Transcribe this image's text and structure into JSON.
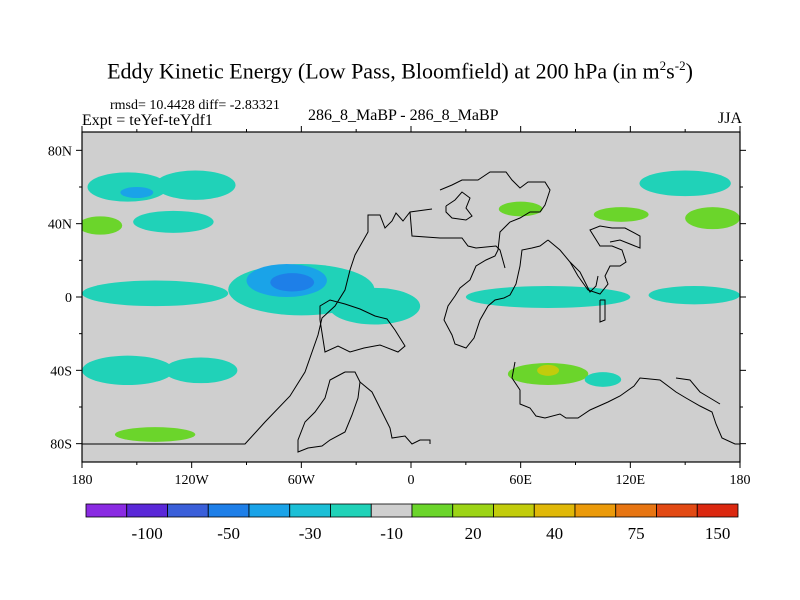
{
  "title": {
    "main": "Eddy Kinetic Energy (Low Pass, Bloomfield) at 200 hPa (in m",
    "sup1": "2",
    "mid": "s",
    "sup2": "-2",
    "end": ")"
  },
  "stats": {
    "rmsd": "rmsd= 10.4428 diff= -2.83321"
  },
  "labels": {
    "expt": "Expt = teYef-teYdf1",
    "center": "286_8_MaBP - 286_8_MaBP",
    "season": "JJA"
  },
  "chart_data": {
    "type": "heatmap",
    "title": "Eddy Kinetic Energy (Low Pass, Bloomfield) at 200 hPa (in m^2 s^-2)",
    "xlim": [
      -180,
      180
    ],
    "ylim": [
      -90,
      90
    ],
    "x_ticks": [
      {
        "value": -180,
        "label": "180"
      },
      {
        "value": -120,
        "label": "120W"
      },
      {
        "value": -60,
        "label": "60W"
      },
      {
        "value": 0,
        "label": "0"
      },
      {
        "value": 60,
        "label": "60E"
      },
      {
        "value": 120,
        "label": "120E"
      },
      {
        "value": 180,
        "label": "180"
      }
    ],
    "y_ticks": [
      {
        "value": 80,
        "label": "80N"
      },
      {
        "value": 40,
        "label": "40N"
      },
      {
        "value": 0,
        "label": "0"
      },
      {
        "value": -40,
        "label": "40S"
      },
      {
        "value": -80,
        "label": "80S"
      }
    ],
    "colorbar": {
      "colors": [
        "#8a2be2",
        "#5a28d8",
        "#3a5fd9",
        "#1e7fe8",
        "#1aa3e8",
        "#1cbfd6",
        "#20d2b8",
        "#cfcfcf",
        "#6bd52b",
        "#9cd416",
        "#c2cc0c",
        "#e0b808",
        "#eb9a0a",
        "#e77512",
        "#e24a14",
        "#db2810"
      ],
      "tick_labels": [
        "-100",
        "-50",
        "-30",
        "-10",
        "20",
        "40",
        "75",
        "150"
      ],
      "ticks_at_boundaries": [
        2,
        4,
        6,
        8,
        10,
        12,
        14,
        16
      ]
    },
    "anomalies": [
      {
        "name": "north-pacific-band-west",
        "lon": -155,
        "lat": 60,
        "rlon": 22,
        "rlat": 8,
        "level": "-10"
      },
      {
        "name": "north-pacific-band-east",
        "lon": -118,
        "lat": 61,
        "rlon": 22,
        "rlat": 8,
        "level": "-10"
      },
      {
        "name": "north-pacific-core",
        "lon": -150,
        "lat": 57,
        "rlon": 9,
        "rlat": 3,
        "level": "-30"
      },
      {
        "name": "north-pacific-40n-positive",
        "lon": -170,
        "lat": 39,
        "rlon": 12,
        "rlat": 5,
        "level": "20"
      },
      {
        "name": "north-pacific-40n-negative",
        "lon": -130,
        "lat": 41,
        "rlon": 22,
        "rlat": 6,
        "level": "-10"
      },
      {
        "name": "tropical-band-west",
        "lon": -140,
        "lat": 2,
        "rlon": 40,
        "rlat": 7,
        "level": "-10"
      },
      {
        "name": "south-america-band",
        "lon": -60,
        "lat": 4,
        "rlon": 40,
        "rlat": 14,
        "level": "-10"
      },
      {
        "name": "tropical-atlantic-band",
        "lon": -20,
        "lat": -5,
        "rlon": 25,
        "rlat": 10,
        "level": "-10"
      },
      {
        "name": "tropical-core-outer",
        "lon": -68,
        "lat": 9,
        "rlon": 22,
        "rlat": 9,
        "level": "-30"
      },
      {
        "name": "tropical-core-inner",
        "lon": -65,
        "lat": 8,
        "rlon": 12,
        "rlat": 5,
        "level": "-50"
      },
      {
        "name": "tropical-indian-band",
        "lon": 75,
        "lat": 0,
        "rlon": 45,
        "rlat": 6,
        "level": "-10"
      },
      {
        "name": "tropical-pacific-east-band",
        "lon": 155,
        "lat": 1,
        "rlon": 25,
        "rlat": 5,
        "level": "-10"
      },
      {
        "name": "southern-subtropics-west",
        "lon": -155,
        "lat": -40,
        "rlon": 25,
        "rlat": 8,
        "level": "-10"
      },
      {
        "name": "southern-subtropics-mid",
        "lon": -115,
        "lat": -40,
        "rlon": 20,
        "rlat": 7,
        "level": "-10"
      },
      {
        "name": "south-indian-positive",
        "lon": 75,
        "lat": -42,
        "rlon": 22,
        "rlat": 6,
        "level": "20"
      },
      {
        "name": "south-indian-core",
        "lon": 75,
        "lat": -40,
        "rlon": 6,
        "rlat": 3,
        "level": "40"
      },
      {
        "name": "south-indian-negative",
        "lon": 105,
        "lat": -45,
        "rlon": 10,
        "rlat": 4,
        "level": "-10"
      },
      {
        "name": "southern-high-latitude-positive",
        "lon": -140,
        "lat": -75,
        "rlon": 22,
        "rlat": 4,
        "level": "20"
      },
      {
        "name": "eurasia-positive-west",
        "lon": 60,
        "lat": 48,
        "rlon": 12,
        "rlat": 4,
        "level": "20"
      },
      {
        "name": "eurasia-positive-east",
        "lon": 115,
        "lat": 45,
        "rlon": 15,
        "rlat": 4,
        "level": "20"
      },
      {
        "name": "northeast-pacific-positive",
        "lon": 165,
        "lat": 43,
        "rlon": 15,
        "rlat": 6,
        "level": "20"
      },
      {
        "name": "north-asia-negative",
        "lon": 150,
        "lat": 62,
        "rlon": 25,
        "rlat": 7,
        "level": "-10"
      }
    ]
  }
}
